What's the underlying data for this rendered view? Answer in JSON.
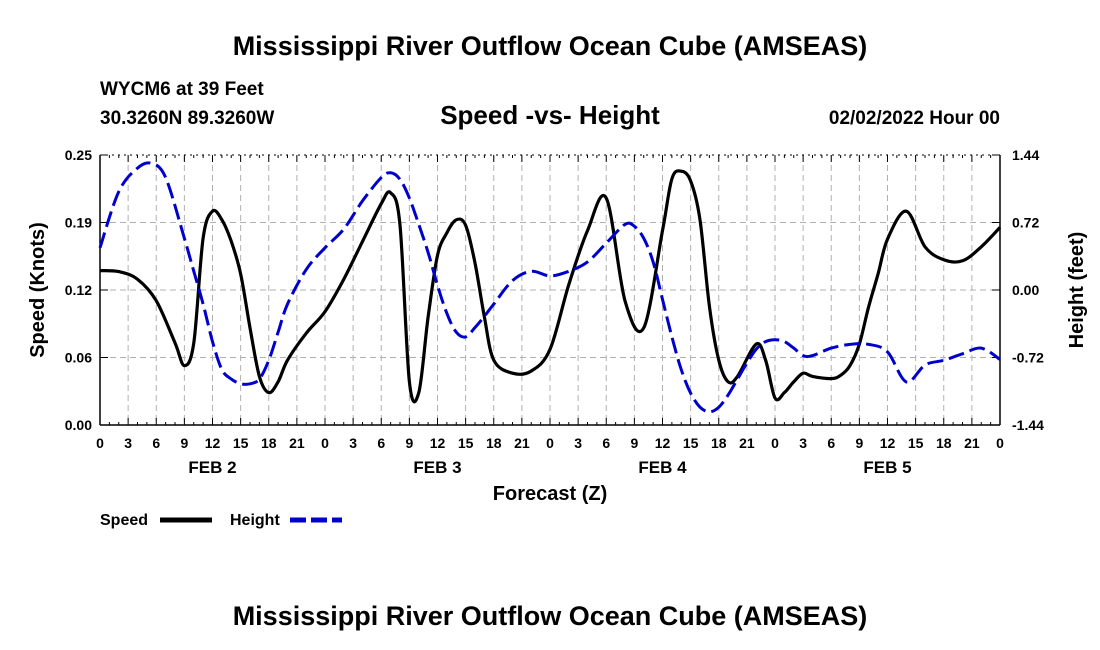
{
  "page": {
    "title": "Mississippi River Outflow Ocean Cube (AMSEAS)",
    "footer_title": "Mississippi River Outflow Ocean Cube (AMSEAS)",
    "station": "WYCM6 at 39 Feet",
    "location": "30.3260N  89.3260W",
    "datetime": "02/02/2022 Hour 00"
  },
  "chart_data": {
    "type": "line",
    "title": "Speed -vs- Height",
    "xlabel": "Forecast (Z)",
    "ylabel": "Speed (Knots)",
    "y2label": "Height (feet)",
    "xlim": [
      0,
      96
    ],
    "ylim": [
      0,
      0.25
    ],
    "y2lim": [
      -1.44,
      1.44
    ],
    "x_tick_labels": [
      "0",
      "3",
      "6",
      "9",
      "12",
      "15",
      "18",
      "21",
      "0",
      "3",
      "6",
      "9",
      "12",
      "15",
      "18",
      "21",
      "0",
      "3",
      "6",
      "9",
      "12",
      "15",
      "18",
      "21",
      "0",
      "3",
      "6",
      "9",
      "12",
      "15",
      "18",
      "21",
      "0"
    ],
    "y_tick_labels": [
      "0.00",
      "0.06",
      "0.12",
      "0.19",
      "0.25"
    ],
    "y_tick_values": [
      0,
      0.0625,
      0.125,
      0.1875,
      0.25
    ],
    "y2_tick_labels": [
      "-1.44",
      "-0.72",
      "0.00",
      "0.72",
      "1.44"
    ],
    "y2_tick_values": [
      -1.44,
      -0.72,
      0,
      0.72,
      1.44
    ],
    "day_labels": [
      {
        "label": "FEB 2",
        "hour": 12
      },
      {
        "label": "FEB 3",
        "hour": 36
      },
      {
        "label": "FEB 4",
        "hour": 60
      },
      {
        "label": "FEB 5",
        "hour": 84
      }
    ],
    "grid": true,
    "legend": {
      "position": "bottom-left",
      "speed_label": "Speed",
      "height_label": "Height"
    },
    "colors": {
      "speed": "#000000",
      "height": "#0000cc",
      "grid": "#b0b0b0"
    },
    "series": [
      {
        "name": "Speed",
        "axis": "left",
        "x": [
          0,
          2,
          4,
          6,
          8,
          9,
          10,
          11,
          12,
          13,
          14,
          15,
          16,
          17,
          18,
          19,
          20,
          22,
          24,
          26,
          28,
          30,
          31,
          32,
          33,
          34,
          35,
          36,
          37,
          38,
          39,
          40,
          41,
          42,
          44,
          46,
          48,
          50,
          52,
          54,
          56,
          58,
          60,
          61,
          62,
          63,
          64,
          65,
          66,
          67,
          68,
          70,
          71,
          72,
          73,
          74,
          75,
          76,
          78,
          79,
          80,
          81,
          82,
          83,
          84,
          86,
          88,
          90,
          92,
          94,
          96
        ],
        "y": [
          0.143,
          0.142,
          0.135,
          0.115,
          0.076,
          0.055,
          0.076,
          0.173,
          0.198,
          0.19,
          0.17,
          0.14,
          0.09,
          0.045,
          0.03,
          0.04,
          0.06,
          0.085,
          0.105,
          0.135,
          0.17,
          0.205,
          0.215,
          0.185,
          0.04,
          0.03,
          0.1,
          0.157,
          0.178,
          0.19,
          0.185,
          0.15,
          0.1,
          0.06,
          0.048,
          0.05,
          0.07,
          0.13,
          0.18,
          0.21,
          0.115,
          0.09,
          0.18,
          0.228,
          0.235,
          0.226,
          0.19,
          0.11,
          0.06,
          0.04,
          0.045,
          0.075,
          0.06,
          0.025,
          0.03,
          0.04,
          0.048,
          0.045,
          0.043,
          0.046,
          0.055,
          0.075,
          0.11,
          0.14,
          0.172,
          0.198,
          0.165,
          0.153,
          0.152,
          0.165,
          0.183
        ]
      },
      {
        "name": "Height",
        "axis": "right",
        "x": [
          0,
          2,
          4,
          5.5,
          7,
          9,
          10,
          11,
          12,
          13,
          14,
          15,
          16,
          17,
          18,
          19,
          20,
          22,
          24,
          26,
          28,
          30,
          31,
          32,
          33,
          34,
          35,
          36,
          37,
          38,
          39,
          40,
          41,
          42,
          44,
          46,
          48,
          50,
          52,
          54,
          56,
          57,
          58,
          59,
          60,
          61,
          62,
          63,
          64,
          65,
          66,
          67,
          68,
          69,
          70,
          71,
          72,
          73,
          74,
          75,
          76,
          78,
          80,
          82,
          84,
          86,
          88,
          90,
          92,
          94,
          96
        ],
        "y": [
          0.45,
          1.05,
          1.3,
          1.35,
          1.2,
          0.55,
          0.2,
          -0.15,
          -0.55,
          -0.85,
          -0.95,
          -1.0,
          -1.0,
          -0.95,
          -0.75,
          -0.45,
          -0.15,
          0.22,
          0.45,
          0.65,
          0.95,
          1.2,
          1.25,
          1.18,
          0.98,
          0.7,
          0.4,
          0.05,
          -0.25,
          -0.45,
          -0.5,
          -0.4,
          -0.28,
          -0.15,
          0.1,
          0.2,
          0.15,
          0.2,
          0.3,
          0.5,
          0.7,
          0.68,
          0.55,
          0.3,
          -0.1,
          -0.5,
          -0.85,
          -1.1,
          -1.25,
          -1.3,
          -1.25,
          -1.12,
          -0.95,
          -0.78,
          -0.63,
          -0.55,
          -0.53,
          -0.55,
          -0.62,
          -0.7,
          -0.7,
          -0.62,
          -0.58,
          -0.58,
          -0.66,
          -0.98,
          -0.8,
          -0.75,
          -0.68,
          -0.62,
          -0.74
        ]
      }
    ]
  }
}
